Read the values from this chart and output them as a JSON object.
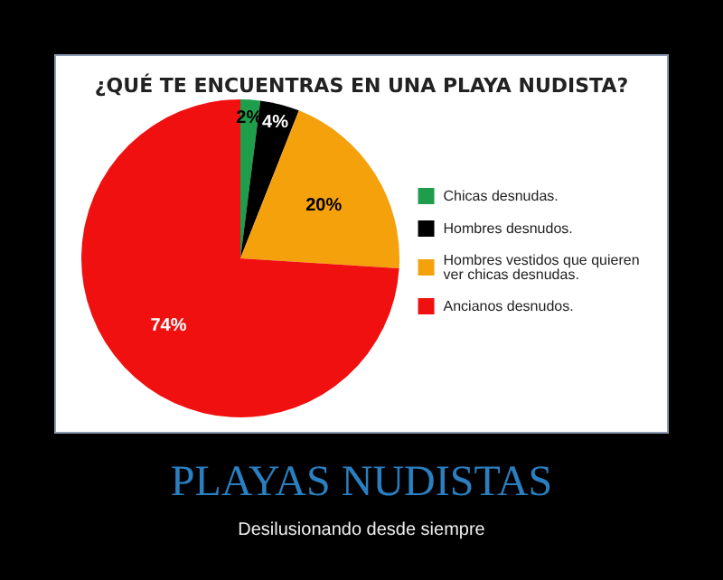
{
  "chart_data": {
    "type": "pie",
    "title": "¿QUÉ TE ENCUENTRAS EN UNA PLAYA NUDISTA?",
    "categories": [
      "Chicas desnudas.",
      "Hombres desnudos.",
      "Hombres vestidos que quieren ver chicas desnudas.",
      "Ancianos desnudos."
    ],
    "values": [
      2,
      4,
      20,
      74
    ],
    "colors": [
      "#1e9e4a",
      "#000000",
      "#f5a10c",
      "#f01010"
    ],
    "value_labels": [
      "2%",
      "4%",
      "20%",
      "74%"
    ],
    "legend": "right",
    "annotations": [
      "PLAYAS NUDISTAS",
      "Desilusionando desde siempre"
    ]
  }
}
